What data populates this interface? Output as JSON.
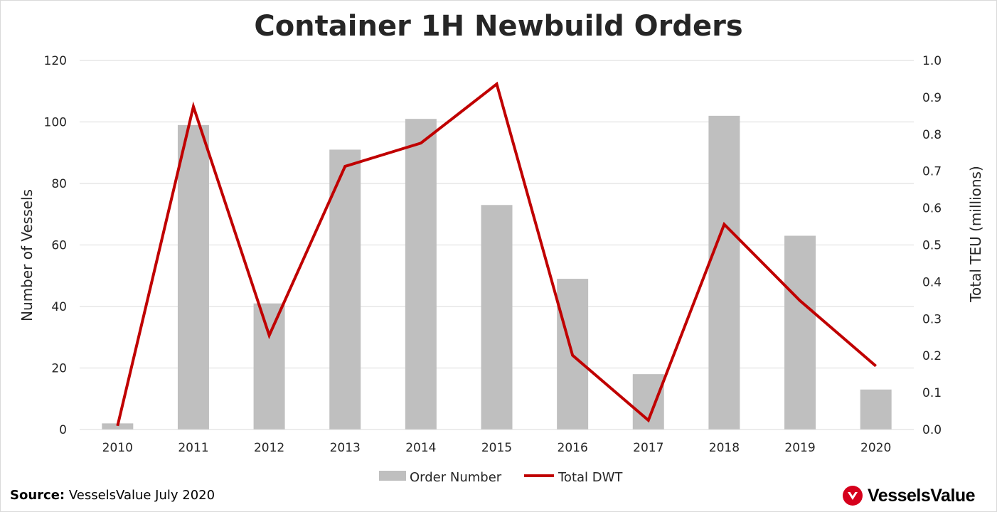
{
  "chart_data": {
    "type": "bar",
    "title": "Container 1H Newbuild Orders",
    "categories": [
      "2010",
      "2011",
      "2012",
      "2013",
      "2014",
      "2015",
      "2016",
      "2017",
      "2018",
      "2019",
      "2020"
    ],
    "series": [
      {
        "name": "Order Number",
        "type": "bar",
        "axis": "left",
        "color": "#bfbfbf",
        "values": [
          2,
          99,
          41,
          91,
          101,
          73,
          49,
          18,
          102,
          63,
          13
        ]
      },
      {
        "name": "Total DWT",
        "type": "line",
        "axis": "right",
        "color": "#c00000",
        "values": [
          0.01,
          0.875,
          0.255,
          0.713,
          0.776,
          0.936,
          0.201,
          0.025,
          0.556,
          0.349,
          0.172
        ]
      }
    ],
    "ylabel": "Number of Vessels",
    "ylim": [
      0,
      120
    ],
    "y_ticks": [
      "0",
      "20",
      "40",
      "60",
      "80",
      "100",
      "120"
    ],
    "y2label": "Total TEU (millions)",
    "y2lim": [
      0,
      1.0
    ],
    "y2_ticks": [
      "0.0",
      "0.1",
      "0.2",
      "0.3",
      "0.4",
      "0.5",
      "0.6",
      "0.7",
      "0.8",
      "0.9",
      "1.0"
    ],
    "grid": true,
    "legend_position": "bottom"
  },
  "footer": {
    "source_label": "Source:",
    "source_text": " VesselsValue July 2020",
    "logo_text": "VesselsValue"
  },
  "colors": {
    "grid": "#d9d9d9",
    "text": "#262626",
    "brand_red": "#c00000"
  }
}
